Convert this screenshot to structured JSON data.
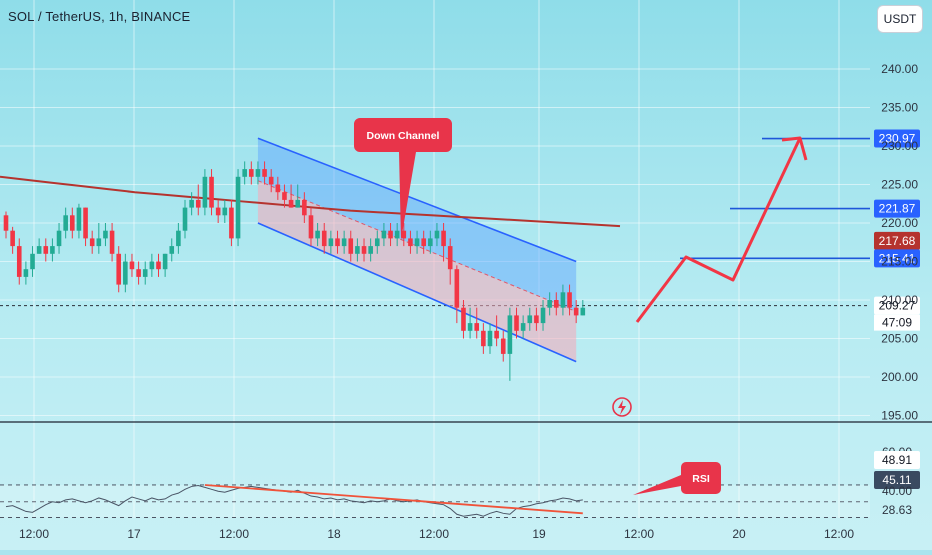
{
  "header": {
    "title": "SOL / TetherUS, 1h, BINANCE",
    "currency_button": "USDT"
  },
  "colors": {
    "up": "#22ab94",
    "down": "#f23645",
    "ma": "#b5332e",
    "channel": "#2962ff",
    "rsi_line": "#4a5566",
    "rsi_trend": "#f0533a",
    "arrow": "#f23645"
  },
  "icons": [
    "lightning-icon"
  ],
  "chart_data": [
    {
      "type": "candlestick",
      "title": "SOL / TetherUS, 1h, BINANCE",
      "ylim": [
        194,
        243
      ],
      "y_ticks": [
        "240.00",
        "235.00",
        "230.00",
        "225.00",
        "220.00",
        "215.00",
        "210.00",
        "205.00",
        "200.00",
        "195.00"
      ],
      "x_ticks": [
        "12:00",
        "17",
        "12:00",
        "18",
        "12:00",
        "19",
        "12:00",
        "20",
        "12:00"
      ],
      "grid": true,
      "candles": [
        [
          221,
          219,
          221.5,
          218
        ],
        [
          219,
          217,
          219.5,
          216
        ],
        [
          217,
          213,
          218,
          212
        ],
        [
          213,
          214,
          215,
          212
        ],
        [
          214,
          216,
          217,
          213
        ],
        [
          216,
          217,
          218,
          216
        ],
        [
          217,
          216,
          218,
          215
        ],
        [
          216,
          217,
          218,
          215
        ],
        [
          217,
          219,
          220,
          216
        ],
        [
          219,
          221,
          222,
          218
        ],
        [
          221,
          219,
          222,
          218
        ],
        [
          219,
          222,
          222.5,
          218
        ],
        [
          222,
          218,
          222,
          217
        ],
        [
          218,
          217,
          219,
          216
        ],
        [
          217,
          218,
          220,
          216
        ],
        [
          218,
          219,
          220,
          217
        ],
        [
          219,
          216,
          220,
          215
        ],
        [
          216,
          212,
          217,
          211
        ],
        [
          212,
          215,
          216,
          211
        ],
        [
          215,
          214,
          216,
          213
        ],
        [
          214,
          213,
          215,
          212
        ],
        [
          213,
          214,
          215,
          212
        ],
        [
          214,
          215,
          216,
          213
        ],
        [
          215,
          214,
          216,
          213
        ],
        [
          214,
          216,
          216,
          213
        ],
        [
          216,
          217,
          218,
          215
        ],
        [
          217,
          219,
          220,
          216
        ],
        [
          219,
          222,
          223,
          218
        ],
        [
          222,
          223,
          224,
          221
        ],
        [
          223,
          222,
          225,
          221
        ],
        [
          222,
          226,
          227,
          221
        ],
        [
          226,
          222,
          227,
          221
        ],
        [
          222,
          221,
          223,
          220
        ],
        [
          221,
          222,
          223,
          220
        ],
        [
          222,
          218,
          223,
          217
        ],
        [
          218,
          226,
          227,
          217
        ],
        [
          226,
          227,
          228,
          225
        ],
        [
          227,
          226,
          228,
          225
        ],
        [
          226,
          227,
          228,
          225
        ],
        [
          227,
          226,
          228,
          225
        ],
        [
          226,
          225,
          227,
          224
        ],
        [
          225,
          224,
          226,
          223
        ],
        [
          224,
          223,
          225,
          222
        ],
        [
          223,
          222,
          225,
          222
        ],
        [
          222,
          223,
          225,
          222
        ],
        [
          223,
          221,
          224,
          220
        ],
        [
          221,
          218,
          222,
          217
        ],
        [
          218,
          219,
          220,
          217
        ],
        [
          219,
          217,
          220,
          216
        ],
        [
          217,
          218,
          219,
          216
        ],
        [
          218,
          217,
          219,
          216
        ],
        [
          217,
          218,
          219,
          216
        ],
        [
          218,
          216,
          219,
          215
        ],
        [
          216,
          217,
          218,
          215
        ],
        [
          217,
          216,
          218,
          215
        ],
        [
          216,
          217,
          218,
          215
        ],
        [
          217,
          218,
          219,
          216
        ],
        [
          218,
          219,
          220,
          217
        ],
        [
          219,
          218,
          220,
          217
        ],
        [
          218,
          219,
          220,
          217
        ],
        [
          219,
          218,
          220,
          217
        ],
        [
          218,
          217,
          219,
          216
        ],
        [
          217,
          218,
          219,
          216
        ],
        [
          218,
          217,
          219,
          216
        ],
        [
          217,
          218,
          219,
          216
        ],
        [
          218,
          219,
          220,
          217
        ],
        [
          219,
          217,
          220,
          215
        ],
        [
          217,
          214,
          218,
          212
        ],
        [
          214,
          209,
          214.5,
          207
        ],
        [
          209,
          206,
          210,
          205
        ],
        [
          206,
          207,
          209,
          205
        ],
        [
          207,
          206,
          209,
          205
        ],
        [
          206,
          204,
          207,
          203
        ],
        [
          204,
          206,
          207,
          203
        ],
        [
          206,
          205,
          208,
          204
        ],
        [
          205,
          203,
          206,
          202
        ],
        [
          203,
          208,
          209,
          199.5
        ],
        [
          208,
          206,
          209,
          205
        ],
        [
          206,
          207,
          208,
          205
        ],
        [
          207,
          208,
          209,
          206
        ],
        [
          208,
          207,
          209,
          206
        ],
        [
          207,
          209,
          210,
          206
        ],
        [
          209,
          210,
          211,
          208
        ],
        [
          210,
          209,
          211,
          208
        ],
        [
          209,
          211,
          212,
          208
        ],
        [
          211,
          209,
          212,
          208
        ],
        [
          209,
          208,
          210,
          207
        ],
        [
          208,
          209,
          210,
          208
        ]
      ],
      "moving_average": [
        226,
        225.6,
        225.2,
        224.8,
        224.4,
        224,
        223.7,
        223.4,
        223.1,
        222.8,
        222.5,
        222.2,
        221.9,
        221.6,
        221.4,
        221.2,
        221,
        220.8,
        220.6,
        220.4,
        220.2,
        220,
        219.8,
        219.6
      ],
      "channel": {
        "upper": [
          [
            38,
            231
          ],
          [
            86,
            215
          ]
        ],
        "lower": [
          [
            38,
            220
          ],
          [
            86,
            202
          ]
        ]
      },
      "channel_label": "Down Channel",
      "price_levels": [
        "230.97",
        "221.87",
        "217.68",
        "215.41",
        "209.27"
      ],
      "price_level_values": [
        230.97,
        221.87,
        217.68,
        215.41,
        209.27
      ],
      "countdown": "47:09",
      "projection": [
        [
          209.27
        ],
        [
          215.41
        ],
        [
          212.5
        ],
        [
          230.97
        ]
      ]
    },
    {
      "type": "line",
      "title": "RSI",
      "ylim": [
        25,
        70
      ],
      "y_ticks": [
        "60.00",
        "48.91",
        "45.11",
        "40.00",
        "28.63"
      ],
      "levels": [
        48.91,
        45.11,
        28.63
      ],
      "values": [
        40,
        41,
        38,
        35,
        34,
        38,
        42,
        45,
        44,
        47,
        48,
        46,
        44,
        46,
        49,
        47,
        44,
        41,
        46,
        50,
        48,
        46,
        49,
        47,
        48,
        52,
        54,
        58,
        61,
        62,
        60,
        58,
        56,
        55,
        57,
        59,
        60,
        61,
        60,
        59,
        58,
        57,
        56,
        55,
        57,
        54,
        51,
        50,
        48,
        49,
        47,
        48,
        46,
        45,
        44,
        46,
        45,
        46,
        48,
        46,
        45,
        46,
        47,
        45,
        44,
        43,
        42,
        38,
        32,
        30,
        31,
        32,
        30,
        33,
        35,
        33,
        32,
        38,
        40,
        41,
        43,
        44,
        46,
        47,
        49,
        48,
        46,
        47
      ],
      "trendline": [
        [
          30,
          62.5
        ],
        [
          87,
          33
        ]
      ]
    }
  ]
}
